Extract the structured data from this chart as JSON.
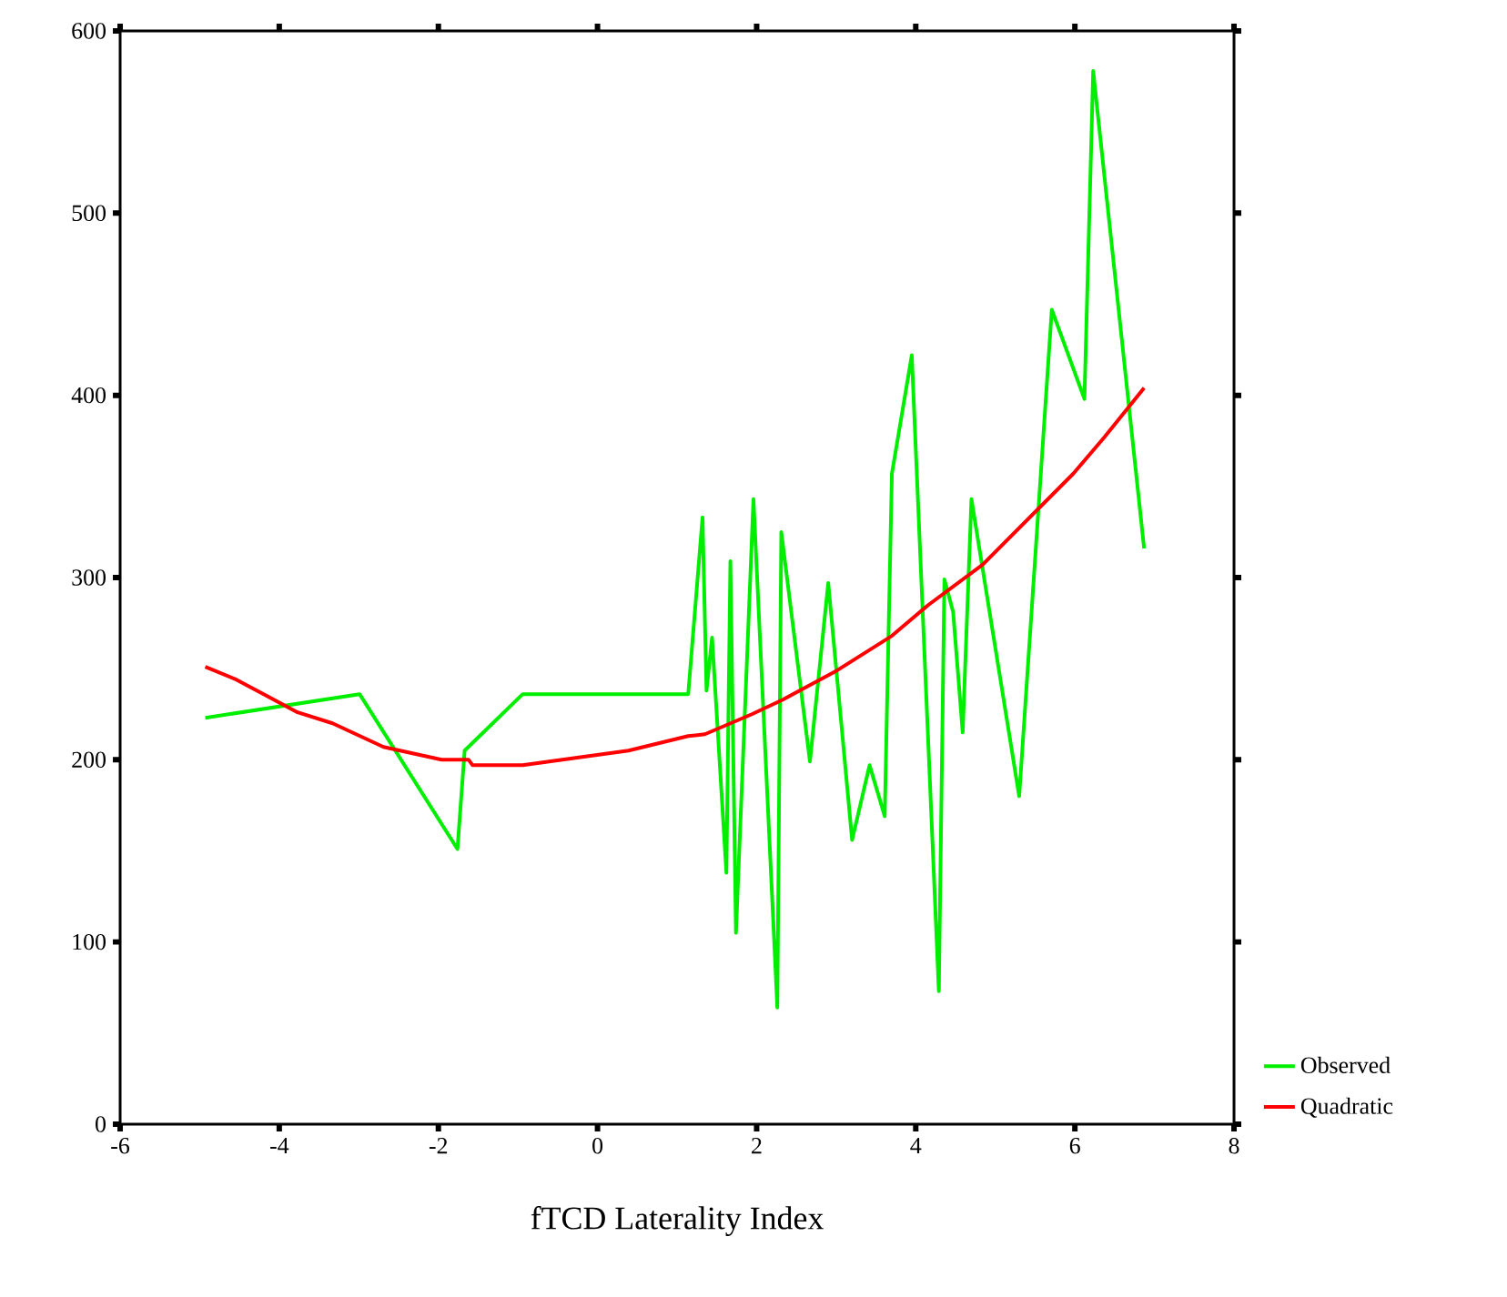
{
  "chart_data": {
    "type": "line",
    "xlabel": "fTCD Laterality Index",
    "xlim": [
      -6,
      8
    ],
    "xticks": [
      -6,
      -4,
      -2,
      0,
      2,
      4,
      6,
      8
    ],
    "ylim": [
      0,
      600
    ],
    "yticks": [
      0,
      100,
      200,
      300,
      400,
      500,
      600
    ],
    "grid": false,
    "legend": "bottom right",
    "marker": "none",
    "line_style": "solid",
    "series": [
      {
        "name": "Observed",
        "color": "#00ee00",
        "x": [
          -4.93,
          -2.99,
          -1.76,
          -1.67,
          -0.94,
          1.14,
          1.32,
          1.37,
          1.44,
          1.62,
          1.67,
          1.74,
          1.96,
          2.26,
          2.31,
          2.67,
          2.9,
          3.2,
          3.42,
          3.61,
          3.7,
          3.95,
          4.29,
          4.36,
          4.47,
          4.59,
          4.7,
          5.3,
          5.71,
          6.12,
          6.23,
          6.87
        ],
        "values": [
          223,
          236,
          151,
          205,
          236,
          236,
          333,
          238,
          267,
          138,
          309,
          105,
          343,
          64,
          325,
          199,
          297,
          156,
          197,
          169,
          357,
          422,
          73,
          299,
          281,
          215,
          343,
          180,
          447,
          398,
          578,
          316
        ]
      },
      {
        "name": "Quadratic",
        "color": "#ff0000",
        "x": [
          -4.93,
          -4.54,
          -3.77,
          -3.33,
          -2.69,
          -1.96,
          -1.62,
          -1.57,
          -0.94,
          0.39,
          1.14,
          1.35,
          1.94,
          2.33,
          3.01,
          3.7,
          4.16,
          4.84,
          5.98,
          6.37,
          6.87
        ],
        "values": [
          251,
          244,
          226,
          220,
          207,
          200,
          200,
          197,
          197,
          205,
          213,
          214,
          225,
          233,
          249,
          268,
          285,
          307,
          357,
          377,
          404
        ]
      }
    ]
  }
}
